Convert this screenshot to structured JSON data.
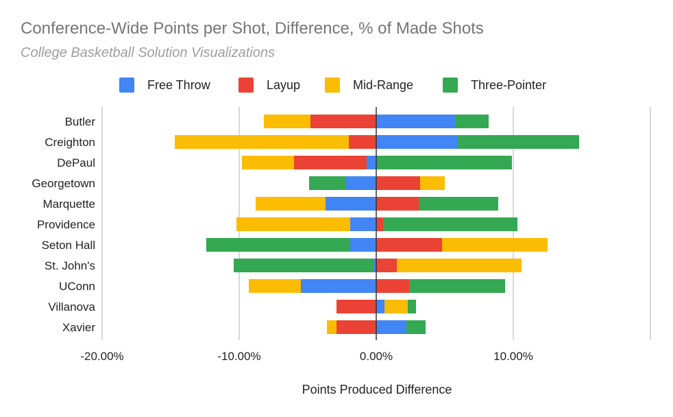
{
  "title": "Conference-Wide Points per Shot, Difference, % of Made Shots",
  "subtitle": "College Basketball Solution Visualizations",
  "chart_data": {
    "type": "bar",
    "orientation": "horizontal",
    "stacked": true,
    "xlabel": "Points Produced Difference",
    "ylabel": "",
    "xlim": [
      -0.2,
      0.2
    ],
    "x_ticks": [
      -0.2,
      -0.1,
      0.0,
      0.1
    ],
    "x_tick_labels": [
      "-20.00%",
      "-10.00%",
      "0.00%",
      "10.00%"
    ],
    "grid": true,
    "legend_position": "top",
    "categories": [
      "Butler",
      "Creighton",
      "DePaul",
      "Georgetown",
      "Marquette",
      "Providence",
      "Seton Hall",
      "St. John's",
      "UConn",
      "Villanova",
      "Xavier"
    ],
    "series": [
      {
        "name": "Free Throw",
        "color": "#4285f4",
        "values": [
          0.058,
          0.059,
          -0.007,
          -0.022,
          -0.037,
          -0.019,
          -0.019,
          -0.002,
          -0.055,
          0.006,
          0.022
        ]
      },
      {
        "name": "Layup",
        "color": "#ea4335",
        "values": [
          -0.048,
          -0.02,
          -0.053,
          0.032,
          0.031,
          0.005,
          0.048,
          0.015,
          0.024,
          -0.029,
          -0.029
        ]
      },
      {
        "name": "Mid-Range",
        "color": "#fbbc04",
        "values": [
          -0.034,
          -0.127,
          -0.038,
          0.018,
          -0.051,
          -0.083,
          0.077,
          0.091,
          -0.038,
          0.017,
          -0.007
        ]
      },
      {
        "name": "Three-Pointer",
        "color": "#34a853",
        "values": [
          0.024,
          0.089,
          0.099,
          -0.027,
          0.058,
          0.098,
          -0.105,
          -0.102,
          0.07,
          0.006,
          0.014
        ]
      }
    ]
  }
}
